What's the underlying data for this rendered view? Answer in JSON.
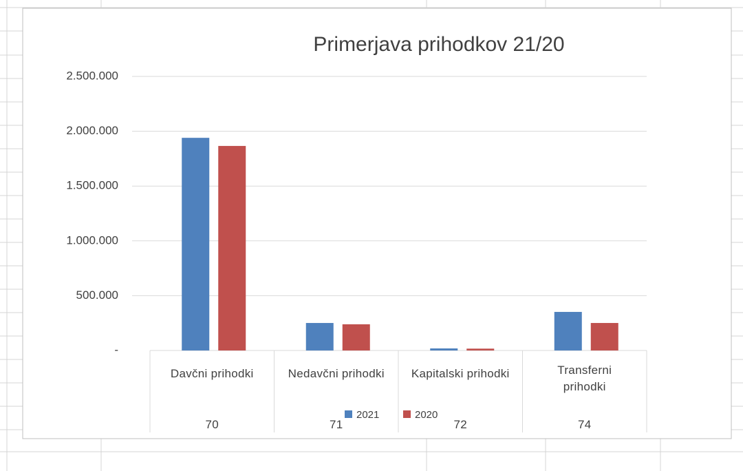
{
  "chart_data": {
    "type": "bar",
    "title": "Primerjava prihodkov 21/20",
    "categories": [
      "Davčni prihodki",
      "Nedavčni prihodki",
      "Kapitalski prihodki",
      "Transferni prihodki"
    ],
    "category_groups": [
      "70",
      "71",
      "72",
      "74"
    ],
    "series": [
      {
        "name": "2021",
        "color": "#4f81bd",
        "values": [
          1940000,
          251000,
          19000,
          352000
        ]
      },
      {
        "name": "2020",
        "color": "#c0504d",
        "values": [
          1866000,
          239000,
          17000,
          251000
        ]
      }
    ],
    "ylim": [
      0,
      2500000
    ],
    "yticks": [
      {
        "value": 0,
        "label": "-"
      },
      {
        "value": 500000,
        "label": "500.000"
      },
      {
        "value": 1000000,
        "label": "1.000.000"
      },
      {
        "value": 1500000,
        "label": "1.500.000"
      },
      {
        "value": 2000000,
        "label": "2.000.000"
      },
      {
        "value": 2500000,
        "label": "2.500.000"
      }
    ],
    "grid": true,
    "legend": "bottom"
  }
}
